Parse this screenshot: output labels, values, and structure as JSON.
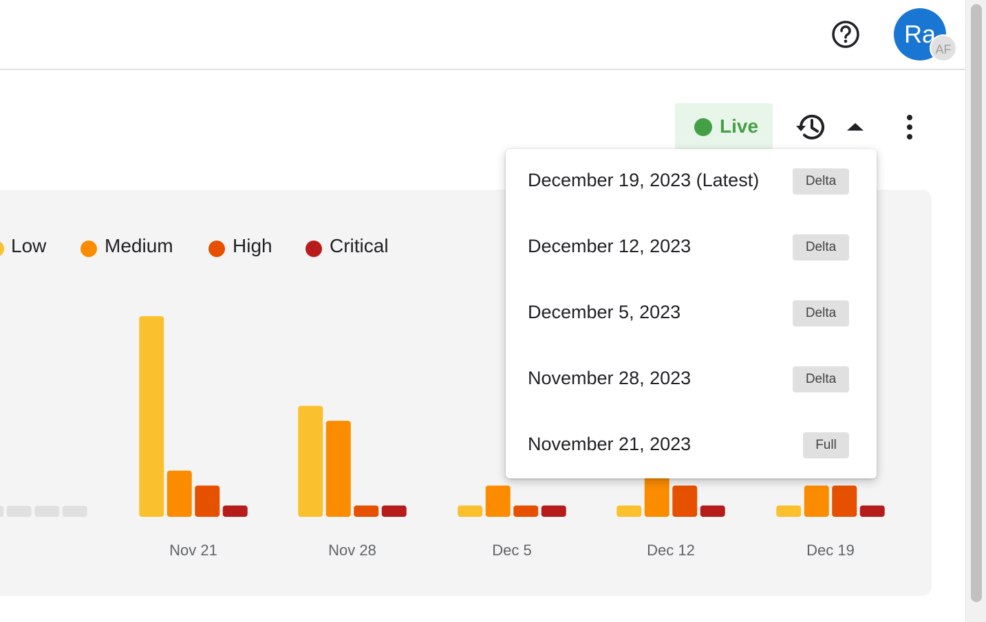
{
  "header": {
    "help_icon": "help-circle-icon",
    "avatar_initials": "Ra",
    "avatar_badge": "AF",
    "avatar_color": "#1976d2"
  },
  "toolbar": {
    "live_label": "Live",
    "live_color": "#43a047",
    "history_icon": "history-icon",
    "collapse_icon": "caret-up-icon",
    "more_icon": "more-vertical-icon"
  },
  "legend": [
    {
      "label": "Low",
      "color": "#fbc02d"
    },
    {
      "label": "Medium",
      "color": "#fb8c00"
    },
    {
      "label": "High",
      "color": "#e65100"
    },
    {
      "label": "Critical",
      "color": "#b71c1c"
    }
  ],
  "chart_data": {
    "type": "bar",
    "categories": [
      "",
      "Nov 21",
      "Nov 28",
      "Dec 5",
      "Dec 12",
      "Dec 19"
    ],
    "series": [
      {
        "name": "Low",
        "values": [
          0,
          20,
          11,
          1,
          1,
          1
        ]
      },
      {
        "name": "Medium",
        "values": [
          0,
          4.5,
          9.5,
          3,
          4.5,
          3
        ]
      },
      {
        "name": "High",
        "values": [
          0,
          3,
          1,
          1,
          3,
          3
        ]
      },
      {
        "name": "Critical",
        "values": [
          0,
          1,
          1,
          1,
          1,
          1
        ]
      }
    ],
    "ylim": [
      0,
      20
    ]
  },
  "version_menu": {
    "items": [
      {
        "date": "December 19, 2023 (Latest)",
        "tag": "Delta",
        "selected": true
      },
      {
        "date": "December 12, 2023",
        "tag": "Delta",
        "selected": false
      },
      {
        "date": "December 5, 2023",
        "tag": "Delta",
        "selected": false
      },
      {
        "date": "November 28, 2023",
        "tag": "Delta",
        "selected": false
      },
      {
        "date": "November 21, 2023",
        "tag": "Full",
        "selected": false
      }
    ]
  }
}
